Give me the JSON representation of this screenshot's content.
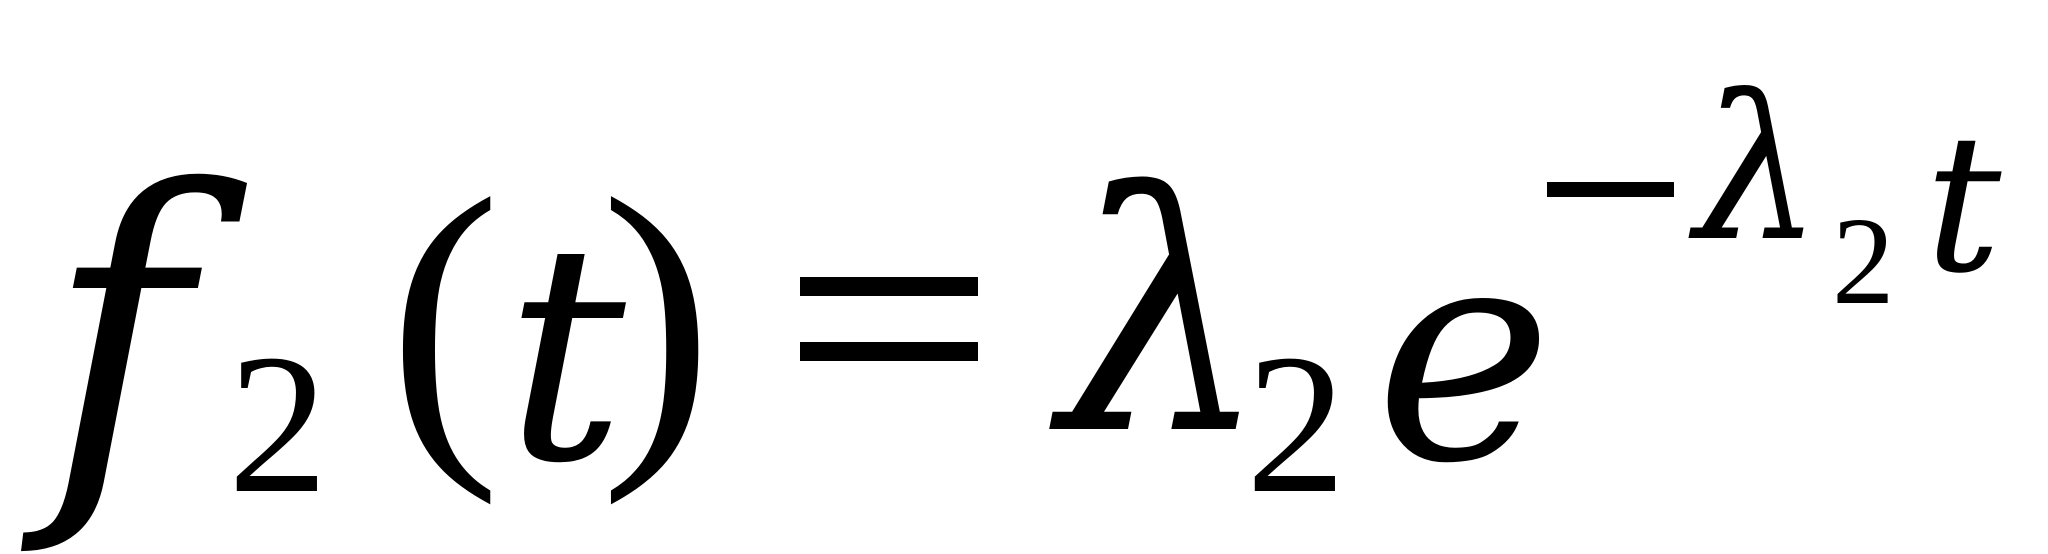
{
  "formula": {
    "function_name": "f",
    "function_subscript": "2",
    "open_paren": "(",
    "argument": "t",
    "close_paren": ")",
    "rate": "λ",
    "rate_subscript": "2",
    "base": "e",
    "exponent": {
      "rate": "λ",
      "rate_subscript": "2",
      "variable": "t"
    }
  }
}
